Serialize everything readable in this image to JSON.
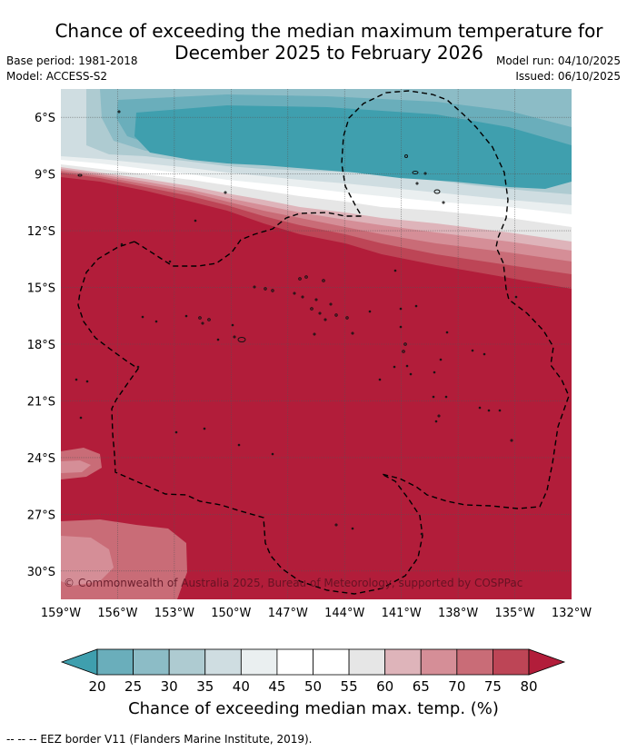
{
  "title": {
    "line1": "Chance of exceeding the median maximum temperature for",
    "line2": "December 2025 to February 2026"
  },
  "meta": {
    "base_period": "Base period: 1981-2018",
    "model": "Model: ACCESS-S2",
    "model_run": "Model run: 04/10/2025",
    "issued": "Issued: 06/10/2025"
  },
  "map": {
    "lon_range": [
      -159,
      -132
    ],
    "lat_range": [
      -31.5,
      -4.5
    ],
    "x_ticks": [
      "159°W",
      "156°W",
      "153°W",
      "150°W",
      "147°W",
      "144°W",
      "141°W",
      "138°W",
      "135°W",
      "132°W"
    ],
    "y_ticks": [
      "6°S",
      "9°S",
      "12°S",
      "15°S",
      "18°S",
      "21°S",
      "24°S",
      "27°S",
      "30°S"
    ],
    "copyright": "© Commonwealth of Australia 2025, Bureau of Meteorology, supported by COSPPac"
  },
  "colorbar": {
    "ticks": [
      "20",
      "25",
      "30",
      "35",
      "40",
      "45",
      "50",
      "55",
      "60",
      "65",
      "70",
      "75",
      "80"
    ],
    "colors": [
      "#3f9fae",
      "#6aaebb",
      "#8cbcc6",
      "#aecbd1",
      "#cfdde1",
      "#eaeff0",
      "#ffffff",
      "#ffffff",
      "#e6e6e6",
      "#deb4ba",
      "#d58e97",
      "#c96c77",
      "#bd4556",
      "#b21d3a"
    ],
    "under_color": "#3f9fae",
    "over_color": "#b21d3a",
    "title": "Chance of exceeding median max. temp. (%)"
  },
  "footnote": "--  --  -- EEZ border V11 (Flanders Marine Institute, 2019)."
}
